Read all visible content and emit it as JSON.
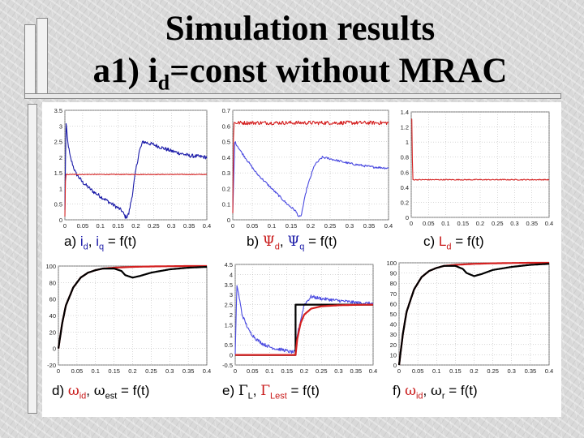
{
  "slide": {
    "title_line1": "Simulation results",
    "title_line2_prefix": "a1) i",
    "title_line2_sub": "d",
    "title_line2_suffix": "=const without MRAC"
  },
  "captions": {
    "a": {
      "p1": "a) ",
      "i1": "i",
      "s1": "d",
      "sep": ", ",
      "i2": "i",
      "s2": "q",
      "rest": " = f(t)"
    },
    "b": {
      "p1": "b) ",
      "g1": "Ψ",
      "s1": "d",
      "sep": ", ",
      "g2": "Ψ",
      "s2": "q",
      "rest": " = f(t)"
    },
    "c": {
      "p1": "c)  ",
      "L": "L",
      "s1": "d",
      "rest": " = f(t)"
    },
    "d": {
      "p1": "d) ",
      "g1": "ω",
      "s1": "id",
      "sep": ", ",
      "g2": "ω",
      "s2": "est",
      "rest": " = f(t)"
    },
    "e": {
      "p1": "e) ",
      "g1": "Γ",
      "s1": "L",
      "sep": ", ",
      "g2": "Γ",
      "s2": "Lest",
      "rest": " = f(t)"
    },
    "f": {
      "p1": "f) ",
      "g1": "ω",
      "s1": "id",
      "sep": ", ",
      "g2": "ω",
      "s2": "r",
      "rest": " = f(t)"
    }
  },
  "colors": {
    "blue": "#1a1aa8",
    "red": "#d42020",
    "black": "#000000",
    "grid": "#b0b0b0"
  },
  "chart_data": [
    {
      "id": "a",
      "type": "line",
      "title": "a) id, iq = f(t)",
      "xlim": [
        0,
        0.4
      ],
      "ylim": [
        0,
        3.5
      ],
      "xticks": [
        "0",
        "0.05",
        "0.1",
        "0.15",
        "0.2",
        "0.25",
        "0.3",
        "0.35",
        "0.4"
      ],
      "yticks": [
        "0",
        "0.5",
        "1",
        "1.5",
        "2",
        "2.5",
        "3",
        "3.5"
      ],
      "series": [
        {
          "name": "iq",
          "color": "#1a1aa8",
          "noise": 0.06,
          "x": [
            0,
            0.003,
            0.008,
            0.015,
            0.03,
            0.05,
            0.08,
            0.1,
            0.12,
            0.14,
            0.16,
            0.17,
            0.175,
            0.18,
            0.19,
            0.2,
            0.21,
            0.22,
            0.25,
            0.3,
            0.35,
            0.4
          ],
          "y": [
            0.3,
            3.1,
            2.5,
            2.0,
            1.5,
            1.2,
            0.9,
            0.75,
            0.6,
            0.45,
            0.3,
            0.1,
            0.1,
            0.2,
            0.8,
            1.6,
            2.2,
            2.5,
            2.4,
            2.2,
            2.05,
            2.0
          ]
        },
        {
          "name": "id",
          "color": "#d42020",
          "noise": 0.01,
          "x": [
            0,
            0.002,
            0.4
          ],
          "y": [
            0.1,
            1.45,
            1.45
          ]
        }
      ]
    },
    {
      "id": "b",
      "type": "line",
      "title": "b) Ψd, Ψq = f(t)",
      "xlim": [
        0,
        0.4
      ],
      "ylim": [
        0,
        0.7
      ],
      "xticks": [
        "0",
        "0.05",
        "0.1",
        "0.15",
        "0.2",
        "0.25",
        "0.3",
        "0.35",
        "0.4"
      ],
      "yticks": [
        "0",
        "0.1",
        "0.2",
        "0.3",
        "0.4",
        "0.5",
        "0.6",
        "0.7"
      ],
      "series": [
        {
          "name": "Ψq",
          "color": "#4a4ae0",
          "noise": 0.007,
          "x": [
            0,
            0.005,
            0.02,
            0.04,
            0.06,
            0.08,
            0.1,
            0.12,
            0.14,
            0.16,
            0.17,
            0.175,
            0.19,
            0.21,
            0.23,
            0.25,
            0.3,
            0.35,
            0.4
          ],
          "y": [
            0.05,
            0.5,
            0.44,
            0.37,
            0.3,
            0.25,
            0.2,
            0.15,
            0.1,
            0.06,
            0.02,
            0.02,
            0.2,
            0.35,
            0.4,
            0.39,
            0.36,
            0.34,
            0.33
          ]
        },
        {
          "name": "Ψd",
          "color": "#d42020",
          "noise": 0.012,
          "x": [
            0,
            0.002,
            0.4
          ],
          "y": [
            0.05,
            0.62,
            0.62
          ]
        }
      ]
    },
    {
      "id": "c",
      "type": "line",
      "title": "c) Ld = f(t)",
      "xlim": [
        0,
        0.4
      ],
      "ylim": [
        0,
        1.4
      ],
      "xticks": [
        "0",
        "0.05",
        "0.1",
        "0.15",
        "0.2",
        "0.25",
        "0.3",
        "0.35",
        "0.4"
      ],
      "yticks": [
        "0",
        "0.2",
        "0.4",
        "0.6",
        "0.8",
        "1",
        "1.2",
        "1.4"
      ],
      "series": [
        {
          "name": "Ld",
          "color": "#d42020",
          "noise": 0.006,
          "x": [
            0,
            0.002,
            0.004,
            0.4
          ],
          "y": [
            1.3,
            1.3,
            0.5,
            0.5
          ]
        }
      ]
    },
    {
      "id": "d",
      "type": "line",
      "title": "d) ωid, ωest = f(t)",
      "xlim": [
        0,
        0.4
      ],
      "ylim": [
        -20,
        100
      ],
      "xticks": [
        "0",
        "0.05",
        "0.1",
        "0.15",
        "0.2",
        "0.25",
        "0.3",
        "0.35",
        "0.4"
      ],
      "yticks": [
        "-20",
        "0",
        "20",
        "40",
        "60",
        "80",
        "100"
      ],
      "series": [
        {
          "name": "ωid",
          "color": "#d42020",
          "noise": 0,
          "x": [
            0,
            0.01,
            0.02,
            0.04,
            0.06,
            0.08,
            0.1,
            0.12,
            0.15,
            0.2,
            0.25,
            0.3,
            0.35,
            0.4
          ],
          "y": [
            0,
            30,
            52,
            74,
            86,
            92,
            95,
            97,
            98,
            99,
            99.5,
            99.8,
            100,
            100
          ]
        },
        {
          "name": "ωest",
          "color": "#000000",
          "noise": 0,
          "x": [
            0,
            0.01,
            0.02,
            0.04,
            0.06,
            0.08,
            0.1,
            0.12,
            0.15,
            0.17,
            0.18,
            0.2,
            0.22,
            0.25,
            0.3,
            0.35,
            0.4
          ],
          "y": [
            0,
            30,
            52,
            74,
            86,
            92,
            95,
            97,
            97,
            94,
            89,
            86,
            88,
            92,
            96,
            98,
            99
          ]
        }
      ]
    },
    {
      "id": "e",
      "type": "line",
      "title": "e) ΓL, ΓLest = f(t)",
      "xlim": [
        0,
        0.4
      ],
      "ylim": [
        -0.5,
        4.5
      ],
      "xticks": [
        "0",
        "0.05",
        "0.1",
        "0.15",
        "0.2",
        "0.25",
        "0.3",
        "0.35",
        "0.4"
      ],
      "yticks": [
        "-0.5",
        "0",
        "0.5",
        "1",
        "1.5",
        "2",
        "2.5",
        "3",
        "3.5",
        "4",
        "4.5"
      ],
      "series": [
        {
          "name": "ΓLest (noisy)",
          "color": "#4a4ae0",
          "noise": 0.08,
          "x": [
            0,
            0.005,
            0.02,
            0.04,
            0.06,
            0.08,
            0.1,
            0.12,
            0.14,
            0.16,
            0.175,
            0.18,
            0.2,
            0.22,
            0.25,
            0.3,
            0.35,
            0.4
          ],
          "y": [
            0,
            3.5,
            2.0,
            1.2,
            0.8,
            0.55,
            0.4,
            0.3,
            0.25,
            0.15,
            0.15,
            1.0,
            2.5,
            2.9,
            2.8,
            2.7,
            2.6,
            2.55
          ]
        },
        {
          "name": "ΓL",
          "color": "#000000",
          "noise": 0,
          "x": [
            0,
            0.175,
            0.175,
            0.4
          ],
          "y": [
            0,
            0,
            2.5,
            2.5
          ]
        },
        {
          "name": "ΓLest",
          "color": "#d42020",
          "noise": 0,
          "x": [
            0,
            0.175,
            0.18,
            0.19,
            0.2,
            0.22,
            0.25,
            0.3,
            0.35,
            0.4
          ],
          "y": [
            0,
            0,
            0.8,
            1.6,
            2.0,
            2.3,
            2.42,
            2.47,
            2.49,
            2.5
          ]
        }
      ]
    },
    {
      "id": "f",
      "type": "line",
      "title": "f) ωid, ωr = f(t)",
      "xlim": [
        0,
        0.4
      ],
      "ylim": [
        0,
        100
      ],
      "xticks": [
        "0",
        "0.05",
        "0.1",
        "0.15",
        "0.2",
        "0.25",
        "0.3",
        "0.35",
        "0.4"
      ],
      "yticks": [
        "0",
        "10",
        "20",
        "30",
        "40",
        "50",
        "60",
        "70",
        "80",
        "90",
        "100"
      ],
      "series": [
        {
          "name": "ωid",
          "color": "#d42020",
          "noise": 0,
          "x": [
            0,
            0.01,
            0.02,
            0.04,
            0.06,
            0.08,
            0.1,
            0.12,
            0.15,
            0.2,
            0.25,
            0.3,
            0.35,
            0.4
          ],
          "y": [
            0,
            30,
            52,
            74,
            86,
            92,
            95,
            97,
            98,
            99,
            99.5,
            99.8,
            100,
            100
          ]
        },
        {
          "name": "ωr",
          "color": "#000000",
          "noise": 0,
          "x": [
            0,
            0.01,
            0.02,
            0.04,
            0.06,
            0.08,
            0.1,
            0.12,
            0.15,
            0.17,
            0.18,
            0.2,
            0.22,
            0.25,
            0.3,
            0.35,
            0.4
          ],
          "y": [
            0,
            30,
            52,
            74,
            86,
            92,
            95,
            97,
            97,
            94,
            90,
            87,
            89,
            93,
            96,
            98,
            99
          ]
        }
      ]
    }
  ]
}
